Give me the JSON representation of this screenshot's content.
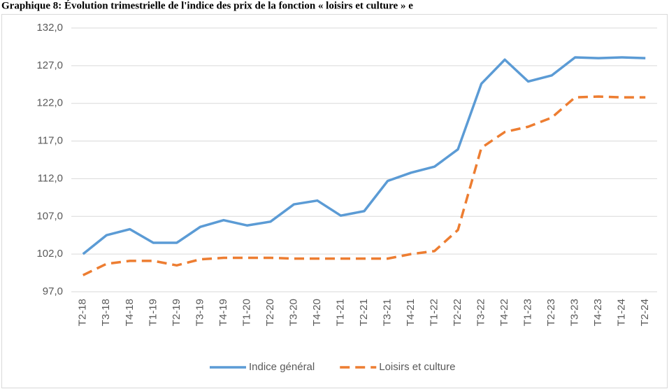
{
  "chart_data": {
    "type": "line",
    "title": "Graphique 8: Évolution trimestrielle de l'indice des prix de la fonction « loisirs et culture » e",
    "categories": [
      "T2-18",
      "T3-18",
      "T4-18",
      "T1-19",
      "T2-19",
      "T3-19",
      "T4-19",
      "T1-20",
      "T2-20",
      "T3-20",
      "T4-20",
      "T1-21",
      "T2-21",
      "T3-21",
      "T4-21",
      "T1-22",
      "T2-22",
      "T3-22",
      "T4-22",
      "T1-23",
      "T2-23",
      "T3-23",
      "T4-23",
      "T1-24",
      "T2-24"
    ],
    "series": [
      {
        "name": "Indice général",
        "color": "#5b9bd5",
        "dashed": false,
        "values": [
          102.0,
          104.5,
          105.3,
          103.5,
          103.5,
          105.6,
          106.5,
          105.8,
          106.3,
          108.6,
          109.1,
          107.1,
          107.7,
          111.7,
          112.8,
          113.6,
          115.9,
          124.6,
          127.8,
          124.9,
          125.7,
          128.1,
          128.0,
          128.1,
          128.0
        ]
      },
      {
        "name": "Loisirs et culture",
        "color": "#ed7d31",
        "dashed": true,
        "values": [
          99.2,
          100.7,
          101.1,
          101.1,
          100.5,
          101.3,
          101.5,
          101.5,
          101.5,
          101.4,
          101.4,
          101.4,
          101.4,
          101.4,
          102.0,
          102.4,
          105.2,
          116.1,
          118.2,
          118.9,
          120.1,
          122.8,
          122.9,
          122.8,
          122.8
        ]
      }
    ],
    "ylim": [
      97,
      132
    ],
    "yticks": [
      {
        "value": 97,
        "label": "97,0"
      },
      {
        "value": 102,
        "label": "102,0"
      },
      {
        "value": 107,
        "label": "107,0"
      },
      {
        "value": 112,
        "label": "112,0"
      },
      {
        "value": 117,
        "label": "117,0"
      },
      {
        "value": 122,
        "label": "122,0"
      },
      {
        "value": 127,
        "label": "127,0"
      },
      {
        "value": 132,
        "label": "132,0"
      }
    ],
    "grid": true,
    "legend": "bottom"
  }
}
